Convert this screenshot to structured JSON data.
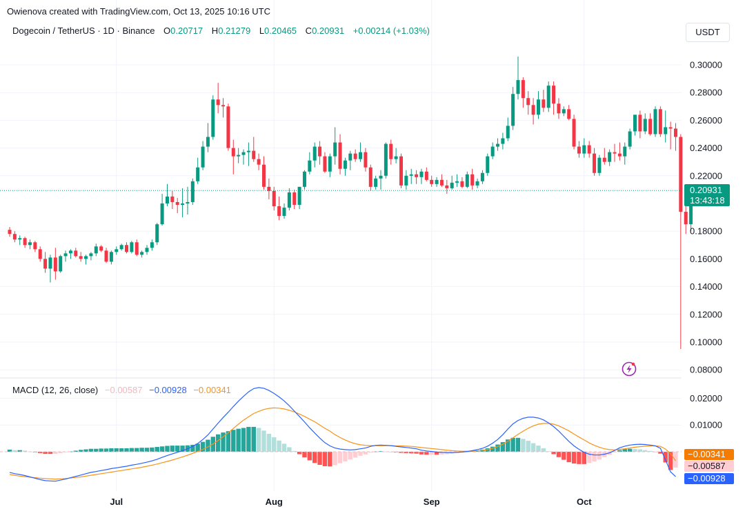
{
  "credit": "Owienova created with TradingView.com, Oct 13, 2025 10:16 UTC",
  "legend": {
    "symbol": "Dogecoin / TetherUS · 1D · Binance",
    "o_label": "O",
    "o_value": "0.20717",
    "h_label": "H",
    "h_value": "0.21279",
    "l_label": "L",
    "l_value": "0.20465",
    "c_label": "C",
    "c_value": "0.20931",
    "change": "+0.00214 (+1.03%)"
  },
  "currency": "USDT",
  "price_axis": {
    "labels": [
      "0.30000",
      "0.28000",
      "0.26000",
      "0.24000",
      "0.22000",
      "0.18000",
      "0.16000",
      "0.14000",
      "0.12000",
      "0.10000",
      "0.08000"
    ],
    "values": [
      0.3,
      0.28,
      0.26,
      0.24,
      0.22,
      0.18,
      0.16,
      0.14,
      0.12,
      0.1,
      0.08
    ]
  },
  "last_price": {
    "value": "0.20931",
    "countdown": "13:43:18",
    "color": "#089981"
  },
  "macd_legend": {
    "title": "MACD (12, 26, close)",
    "histogram": "−0.00587",
    "macd": "−0.00928",
    "signal": "−0.00341"
  },
  "macd_axis": {
    "labels": [
      "0.02000",
      "0.01000"
    ],
    "values": [
      0.02,
      0.01
    ],
    "signal_badge": "−0.00341",
    "hist_badge": "−0.00587",
    "macd_badge": "−0.00928"
  },
  "time_axis": [
    "Jul",
    "Aug",
    "Sep",
    "Oct"
  ],
  "colors": {
    "up": "#089981",
    "down": "#f23645",
    "macd": "#2962ff",
    "signal": "#f7931a",
    "hist_up": "#26a69a",
    "hist_up_light": "#b2dfdb",
    "hist_down": "#ff5252",
    "hist_down_light": "#ffcdd2"
  },
  "chart_data": {
    "type": "candlestick",
    "symbol": "Dogecoin / TetherUS",
    "interval": "1D",
    "exchange": "Binance",
    "month_labels": [
      {
        "label": "Jul",
        "index": 21
      },
      {
        "label": "Aug",
        "index": 52
      },
      {
        "label": "Sep",
        "index": 83
      },
      {
        "label": "Oct",
        "index": 113
      }
    ],
    "ylim": [
      0.075,
      0.31
    ],
    "candles": [
      [
        0.181,
        0.183,
        0.176,
        0.178
      ],
      [
        0.178,
        0.18,
        0.172,
        0.174
      ],
      [
        0.174,
        0.177,
        0.17,
        0.175
      ],
      [
        0.175,
        0.176,
        0.168,
        0.17
      ],
      [
        0.17,
        0.174,
        0.167,
        0.172
      ],
      [
        0.172,
        0.173,
        0.165,
        0.167
      ],
      [
        0.167,
        0.169,
        0.158,
        0.16
      ],
      [
        0.16,
        0.165,
        0.15,
        0.153
      ],
      [
        0.153,
        0.163,
        0.143,
        0.161
      ],
      [
        0.161,
        0.168,
        0.145,
        0.151
      ],
      [
        0.151,
        0.163,
        0.15,
        0.162
      ],
      [
        0.162,
        0.166,
        0.158,
        0.164
      ],
      [
        0.164,
        0.167,
        0.16,
        0.166
      ],
      [
        0.166,
        0.168,
        0.161,
        0.162
      ],
      [
        0.162,
        0.165,
        0.158,
        0.16
      ],
      [
        0.16,
        0.163,
        0.156,
        0.162
      ],
      [
        0.162,
        0.165,
        0.159,
        0.164
      ],
      [
        0.164,
        0.171,
        0.162,
        0.169
      ],
      [
        0.169,
        0.17,
        0.165,
        0.166
      ],
      [
        0.166,
        0.168,
        0.157,
        0.158
      ],
      [
        0.158,
        0.166,
        0.156,
        0.165
      ],
      [
        0.165,
        0.169,
        0.163,
        0.167
      ],
      [
        0.167,
        0.171,
        0.166,
        0.17
      ],
      [
        0.17,
        0.172,
        0.164,
        0.165
      ],
      [
        0.165,
        0.173,
        0.164,
        0.172
      ],
      [
        0.172,
        0.174,
        0.162,
        0.163
      ],
      [
        0.163,
        0.166,
        0.161,
        0.165
      ],
      [
        0.165,
        0.17,
        0.163,
        0.168
      ],
      [
        0.168,
        0.174,
        0.166,
        0.172
      ],
      [
        0.172,
        0.186,
        0.17,
        0.185
      ],
      [
        0.185,
        0.207,
        0.184,
        0.2
      ],
      [
        0.2,
        0.214,
        0.198,
        0.205
      ],
      [
        0.205,
        0.209,
        0.196,
        0.201
      ],
      [
        0.201,
        0.204,
        0.193,
        0.199
      ],
      [
        0.199,
        0.211,
        0.19,
        0.2
      ],
      [
        0.2,
        0.212,
        0.192,
        0.201
      ],
      [
        0.201,
        0.218,
        0.199,
        0.216
      ],
      [
        0.216,
        0.233,
        0.214,
        0.226
      ],
      [
        0.226,
        0.245,
        0.224,
        0.241
      ],
      [
        0.241,
        0.258,
        0.237,
        0.248
      ],
      [
        0.248,
        0.278,
        0.246,
        0.275
      ],
      [
        0.275,
        0.287,
        0.265,
        0.271
      ],
      [
        0.271,
        0.276,
        0.262,
        0.27
      ],
      [
        0.27,
        0.272,
        0.238,
        0.24
      ],
      [
        0.24,
        0.246,
        0.221,
        0.234
      ],
      [
        0.234,
        0.24,
        0.229,
        0.235
      ],
      [
        0.235,
        0.239,
        0.228,
        0.237
      ],
      [
        0.237,
        0.244,
        0.227,
        0.238
      ],
      [
        0.238,
        0.248,
        0.23,
        0.232
      ],
      [
        0.232,
        0.236,
        0.224,
        0.228
      ],
      [
        0.228,
        0.234,
        0.21,
        0.212
      ],
      [
        0.212,
        0.218,
        0.203,
        0.209
      ],
      [
        0.209,
        0.212,
        0.195,
        0.198
      ],
      [
        0.198,
        0.205,
        0.188,
        0.191
      ],
      [
        0.191,
        0.2,
        0.189,
        0.197
      ],
      [
        0.197,
        0.211,
        0.195,
        0.208
      ],
      [
        0.208,
        0.21,
        0.196,
        0.199
      ],
      [
        0.199,
        0.212,
        0.196,
        0.212
      ],
      [
        0.212,
        0.224,
        0.21,
        0.223
      ],
      [
        0.223,
        0.237,
        0.221,
        0.231
      ],
      [
        0.231,
        0.244,
        0.226,
        0.241
      ],
      [
        0.241,
        0.245,
        0.228,
        0.234
      ],
      [
        0.234,
        0.237,
        0.222,
        0.223
      ],
      [
        0.223,
        0.236,
        0.219,
        0.234
      ],
      [
        0.234,
        0.255,
        0.228,
        0.244
      ],
      [
        0.244,
        0.25,
        0.221,
        0.225
      ],
      [
        0.225,
        0.233,
        0.22,
        0.231
      ],
      [
        0.231,
        0.238,
        0.224,
        0.236
      ],
      [
        0.236,
        0.239,
        0.23,
        0.232
      ],
      [
        0.232,
        0.244,
        0.23,
        0.237
      ],
      [
        0.237,
        0.24,
        0.223,
        0.226
      ],
      [
        0.226,
        0.228,
        0.209,
        0.212
      ],
      [
        0.212,
        0.22,
        0.21,
        0.218
      ],
      [
        0.218,
        0.224,
        0.21,
        0.22
      ],
      [
        0.22,
        0.244,
        0.218,
        0.243
      ],
      [
        0.243,
        0.246,
        0.228,
        0.232
      ],
      [
        0.232,
        0.24,
        0.229,
        0.234
      ],
      [
        0.234,
        0.236,
        0.211,
        0.213
      ],
      [
        0.213,
        0.224,
        0.21,
        0.22
      ],
      [
        0.22,
        0.225,
        0.214,
        0.221
      ],
      [
        0.221,
        0.224,
        0.214,
        0.219
      ],
      [
        0.219,
        0.225,
        0.214,
        0.223
      ],
      [
        0.223,
        0.226,
        0.216,
        0.217
      ],
      [
        0.217,
        0.22,
        0.212,
        0.214
      ],
      [
        0.214,
        0.219,
        0.212,
        0.217
      ],
      [
        0.217,
        0.221,
        0.212,
        0.213
      ],
      [
        0.213,
        0.217,
        0.207,
        0.211
      ],
      [
        0.211,
        0.22,
        0.21,
        0.215
      ],
      [
        0.215,
        0.221,
        0.212,
        0.216
      ],
      [
        0.216,
        0.219,
        0.211,
        0.212
      ],
      [
        0.212,
        0.223,
        0.211,
        0.221
      ],
      [
        0.221,
        0.225,
        0.21,
        0.213
      ],
      [
        0.213,
        0.218,
        0.211,
        0.216
      ],
      [
        0.216,
        0.224,
        0.214,
        0.222
      ],
      [
        0.222,
        0.236,
        0.22,
        0.234
      ],
      [
        0.234,
        0.244,
        0.232,
        0.241
      ],
      [
        0.241,
        0.247,
        0.238,
        0.243
      ],
      [
        0.243,
        0.251,
        0.239,
        0.247
      ],
      [
        0.247,
        0.262,
        0.245,
        0.256
      ],
      [
        0.256,
        0.284,
        0.253,
        0.279
      ],
      [
        0.279,
        0.306,
        0.275,
        0.289
      ],
      [
        0.289,
        0.291,
        0.269,
        0.276
      ],
      [
        0.276,
        0.281,
        0.264,
        0.271
      ],
      [
        0.271,
        0.276,
        0.257,
        0.264
      ],
      [
        0.264,
        0.281,
        0.261,
        0.275
      ],
      [
        0.275,
        0.282,
        0.266,
        0.269
      ],
      [
        0.269,
        0.288,
        0.266,
        0.285
      ],
      [
        0.285,
        0.288,
        0.264,
        0.272
      ],
      [
        0.272,
        0.276,
        0.261,
        0.265
      ],
      [
        0.265,
        0.27,
        0.263,
        0.268
      ],
      [
        0.268,
        0.271,
        0.26,
        0.261
      ],
      [
        0.261,
        0.264,
        0.239,
        0.241
      ],
      [
        0.241,
        0.245,
        0.233,
        0.236
      ],
      [
        0.236,
        0.247,
        0.233,
        0.242
      ],
      [
        0.242,
        0.245,
        0.233,
        0.236
      ],
      [
        0.236,
        0.24,
        0.22,
        0.222
      ],
      [
        0.222,
        0.235,
        0.22,
        0.233
      ],
      [
        0.233,
        0.24,
        0.228,
        0.23
      ],
      [
        0.23,
        0.239,
        0.227,
        0.237
      ],
      [
        0.237,
        0.243,
        0.23,
        0.236
      ],
      [
        0.236,
        0.244,
        0.231,
        0.234
      ],
      [
        0.234,
        0.244,
        0.228,
        0.241
      ],
      [
        0.241,
        0.254,
        0.239,
        0.252
      ],
      [
        0.252,
        0.264,
        0.249,
        0.264
      ],
      [
        0.264,
        0.267,
        0.247,
        0.252
      ],
      [
        0.252,
        0.265,
        0.25,
        0.261
      ],
      [
        0.261,
        0.265,
        0.249,
        0.25
      ],
      [
        0.25,
        0.27,
        0.248,
        0.268
      ],
      [
        0.268,
        0.27,
        0.248,
        0.25
      ],
      [
        0.25,
        0.267,
        0.244,
        0.255
      ],
      [
        0.255,
        0.259,
        0.239,
        0.254
      ],
      [
        0.254,
        0.258,
        0.238,
        0.248
      ],
      [
        0.248,
        0.25,
        0.095,
        0.194
      ],
      [
        0.194,
        0.201,
        0.178,
        0.185
      ],
      [
        0.185,
        0.213,
        0.18,
        0.207
      ],
      [
        0.20717,
        0.21279,
        0.20465,
        0.20931
      ]
    ],
    "macd_ylim": [
      -0.0115,
      0.0245
    ],
    "macd": [
      -0.0077,
      -0.0082,
      -0.0085,
      -0.0089,
      -0.0094,
      -0.0099,
      -0.0104,
      -0.0108,
      -0.0109,
      -0.011,
      -0.0106,
      -0.0102,
      -0.0097,
      -0.0092,
      -0.0087,
      -0.0082,
      -0.0077,
      -0.0074,
      -0.007,
      -0.0067,
      -0.0063,
      -0.006,
      -0.0057,
      -0.0054,
      -0.005,
      -0.0047,
      -0.0043,
      -0.0039,
      -0.0034,
      -0.0028,
      -0.0021,
      -0.0014,
      -0.0008,
      -0.0002,
      0.0004,
      0.0011,
      0.002,
      0.0031,
      0.0046,
      0.0063,
      0.0085,
      0.0107,
      0.0128,
      0.0148,
      0.0169,
      0.0189,
      0.0207,
      0.0224,
      0.0236,
      0.024,
      0.0237,
      0.0229,
      0.0218,
      0.0205,
      0.019,
      0.0172,
      0.0152,
      0.0132,
      0.0111,
      0.009,
      0.007,
      0.0051,
      0.0034,
      0.0022,
      0.0014,
      0.001,
      0.0008,
      0.0007,
      0.0008,
      0.0011,
      0.0014,
      0.002,
      0.0024,
      0.0025,
      0.0024,
      0.0023,
      0.002,
      0.0018,
      0.0016,
      0.0014,
      0.0011,
      0.0006,
      0.0003,
      0.0001,
      -0.0001,
      -0.0002,
      -0.0003,
      -0.0003,
      -0.0002,
      -0.0001,
      0.0001,
      0.0004,
      0.0008,
      0.0013,
      0.0021,
      0.0032,
      0.0046,
      0.0064,
      0.0085,
      0.0104,
      0.0117,
      0.0125,
      0.0129,
      0.0129,
      0.0126,
      0.0119,
      0.0108,
      0.0094,
      0.0077,
      0.0058,
      0.0039,
      0.0022,
      0.0009,
      -0.0002,
      -0.0009,
      -0.0012,
      -0.0012,
      -0.0009,
      -0.0004,
      0.0005,
      0.0015,
      0.0021,
      0.0025,
      0.0027,
      0.0028,
      0.0027,
      0.0025,
      0.0022,
      0.0013,
      -0.003,
      -0.0075,
      -0.0093
    ],
    "signal": [
      -0.0085,
      -0.0088,
      -0.0091,
      -0.0093,
      -0.0095,
      -0.0097,
      -0.0099,
      -0.01,
      -0.0101,
      -0.0102,
      -0.0101,
      -0.01,
      -0.0098,
      -0.0096,
      -0.0094,
      -0.0091,
      -0.0088,
      -0.0085,
      -0.0082,
      -0.0079,
      -0.0076,
      -0.0073,
      -0.007,
      -0.0067,
      -0.0064,
      -0.0061,
      -0.0058,
      -0.0054,
      -0.005,
      -0.0046,
      -0.0041,
      -0.0036,
      -0.0031,
      -0.0025,
      -0.0019,
      -0.0013,
      -0.0006,
      0.0001,
      0.0009,
      0.0018,
      0.0029,
      0.0042,
      0.0056,
      0.0071,
      0.0087,
      0.0103,
      0.0118,
      0.0131,
      0.0143,
      0.0151,
      0.0158,
      0.0162,
      0.0164,
      0.0163,
      0.016,
      0.0155,
      0.0149,
      0.0141,
      0.0132,
      0.0122,
      0.0112,
      0.01,
      0.0088,
      0.0077,
      0.0064,
      0.0053,
      0.0044,
      0.0036,
      0.003,
      0.0026,
      0.0024,
      0.0023,
      0.0023,
      0.0023,
      0.0023,
      0.0023,
      0.0022,
      0.0022,
      0.0021,
      0.002,
      0.0018,
      0.0016,
      0.0014,
      0.0012,
      0.001,
      0.0008,
      0.0006,
      0.0004,
      0.0003,
      0.0002,
      0.0002,
      0.0002,
      0.0003,
      0.0005,
      0.0008,
      0.0013,
      0.0019,
      0.0028,
      0.0039,
      0.0052,
      0.0065,
      0.0077,
      0.0088,
      0.0097,
      0.0103,
      0.0106,
      0.0106,
      0.0103,
      0.0097,
      0.0088,
      0.0078,
      0.0066,
      0.0055,
      0.0044,
      0.0033,
      0.0024,
      0.0017,
      0.0011,
      0.0008,
      0.0007,
      0.0009,
      0.0011,
      0.0014,
      0.0017,
      0.0019,
      0.0021,
      0.0022,
      0.0022,
      0.002,
      0.001,
      -0.0007,
      -0.0034
    ]
  }
}
